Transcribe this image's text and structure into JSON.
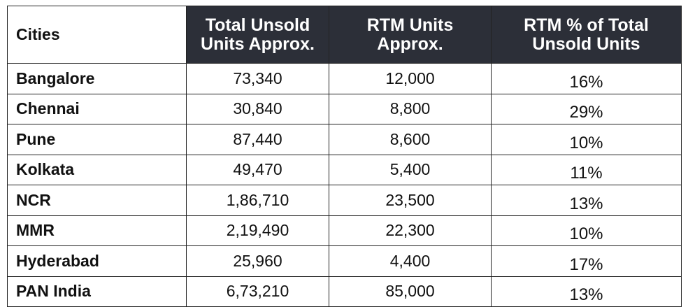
{
  "table": {
    "headers": [
      "Cities",
      "Total Unsold\nUnits Approx.",
      "RTM Units\nApprox.",
      "RTM % of Total\nUnsold Units"
    ],
    "rows": [
      [
        "Bangalore",
        "73,340",
        "12,000",
        "16%"
      ],
      [
        "Chennai",
        "30,840",
        "8,800",
        "29%"
      ],
      [
        "Pune",
        "87,440",
        "8,600",
        "10%"
      ],
      [
        "Kolkata",
        "49,470",
        "5,400",
        "11%"
      ],
      [
        "NCR",
        "1,86,710",
        "23,500",
        "13%"
      ],
      [
        "MMR",
        "2,19,490",
        "22,300",
        "10%"
      ],
      [
        "Hyderabad",
        "25,960",
        "4,400",
        "17%"
      ],
      [
        "PAN India",
        "6,73,210",
        "85,000",
        "13%"
      ]
    ]
  },
  "colors": {
    "header_bg": "#2c2f38",
    "header_text": "#ffffff",
    "border": "#222222",
    "body_text": "#111111"
  }
}
